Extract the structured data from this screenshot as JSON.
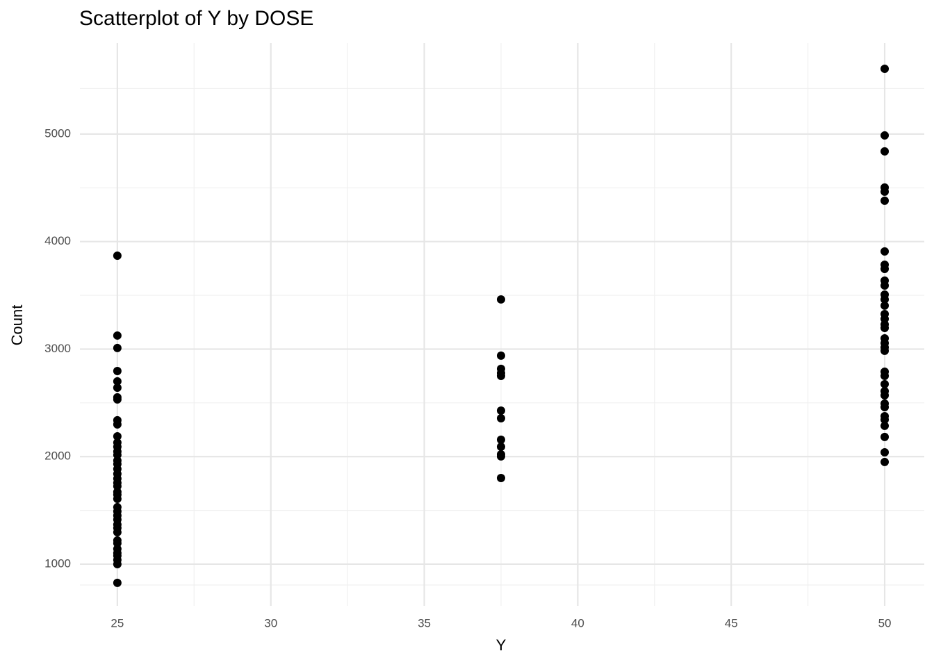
{
  "chart_data": {
    "type": "scatter",
    "title": "Scatterplot of Y by DOSE",
    "x_label": "Y",
    "y_label": "Count",
    "color": "#000000",
    "grid": true,
    "minor_grid": true,
    "xlim": [
      23.78,
      51.29
    ],
    "xticks": [
      25,
      30,
      35,
      40,
      45,
      50
    ],
    "ylim": [
      612,
      5846
    ],
    "yticks": [
      1000,
      2000,
      3000,
      4000,
      5000
    ],
    "x": [
      25,
      25,
      25,
      25,
      25,
      25,
      25,
      25,
      25,
      25,
      25,
      25,
      25,
      25,
      25,
      25,
      25,
      25,
      25,
      25,
      25,
      25,
      25,
      25,
      25,
      25,
      25,
      25,
      25,
      25,
      25,
      25,
      25,
      25,
      25,
      25,
      25,
      25,
      25,
      25,
      37.5,
      37.5,
      37.5,
      37.5,
      37.5,
      37.5,
      37.5,
      37.5,
      37.5,
      37.5,
      37.5,
      37.5,
      50,
      50,
      50,
      50,
      50,
      50,
      50,
      50,
      50,
      50,
      50,
      50,
      50,
      50,
      50,
      50,
      50,
      50,
      50,
      50,
      50,
      50,
      50,
      50,
      50,
      50,
      50,
      50,
      50,
      50,
      50,
      50,
      50,
      50,
      50
    ],
    "values": [
      3869,
      3126,
      3010,
      2796,
      2700,
      2641,
      2551,
      2532,
      2338,
      2299,
      2189,
      2131,
      2092,
      2047,
      2015,
      1963,
      1931,
      1885,
      1840,
      1795,
      1756,
      1724,
      1672,
      1646,
      1607,
      1530,
      1491,
      1452,
      1414,
      1368,
      1336,
      1297,
      1220,
      1194,
      1142,
      1103,
      1078,
      1039,
      1000,
      826,
      3462,
      2939,
      2816,
      2777,
      2751,
      2428,
      2357,
      2157,
      2092,
      2021,
      2002,
      1801,
      5607,
      4987,
      4839,
      4503,
      4464,
      4380,
      3908,
      3785,
      3746,
      3637,
      3591,
      3507,
      3462,
      3404,
      3326,
      3281,
      3229,
      3197,
      3100,
      3055,
      3016,
      2984,
      2790,
      2751,
      2674,
      2609,
      2570,
      2493,
      2460,
      2376,
      2344,
      2286,
      2183,
      2040,
      1950
    ]
  }
}
